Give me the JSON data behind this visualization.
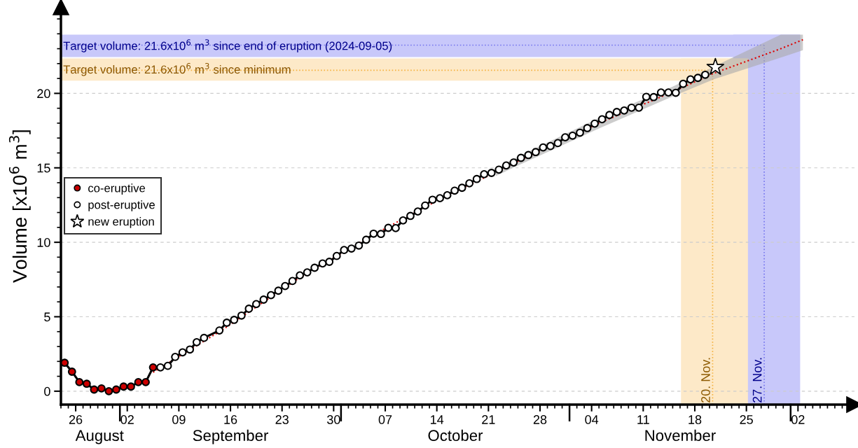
{
  "chart_data": {
    "type": "line",
    "ylabel": "Volume [x10$^{6}$ m$^{3}$]",
    "xlim": [
      "2024-08-24T00:00",
      "2024-12-09T16:00"
    ],
    "ylim": [
      -0.9,
      25.8
    ],
    "yticks": [
      0,
      5,
      10,
      15,
      20
    ],
    "xticks": [
      {
        "value": "2024-08-26",
        "label": "26"
      },
      {
        "value": "2024-09-02",
        "label": "02"
      },
      {
        "value": "2024-09-09",
        "label": "09"
      },
      {
        "value": "2024-09-16",
        "label": "16"
      },
      {
        "value": "2024-09-23",
        "label": "23"
      },
      {
        "value": "2024-09-30",
        "label": "30"
      },
      {
        "value": "2024-10-07",
        "label": "07"
      },
      {
        "value": "2024-10-14",
        "label": "14"
      },
      {
        "value": "2024-10-21",
        "label": "21"
      },
      {
        "value": "2024-10-28",
        "label": "28"
      },
      {
        "value": "2024-11-04",
        "label": "04"
      },
      {
        "value": "2024-11-11",
        "label": "11"
      },
      {
        "value": "2024-11-18",
        "label": "18"
      },
      {
        "value": "2024-11-25",
        "label": "25"
      },
      {
        "value": "2024-12-02",
        "label": "02"
      }
    ],
    "x2lim": [
      "2024-08-24T00:00",
      "2024-12-09T16:00"
    ],
    "x2ticks": [
      {
        "value": "2024-08-29T06:00",
        "label": "August"
      },
      {
        "value": "2024-09-16",
        "label": "September"
      },
      {
        "value": "2024-10-16T12:00",
        "label": "October"
      },
      {
        "value": "2024-11-16",
        "label": "November"
      }
    ],
    "grid": "y",
    "legend": "center left",
    "bands": [
      {
        "axis": "y",
        "from": 22.44,
        "to": 23.94,
        "label": "Target volume: 21.6x10$^{6}$ m$^{3}$ since end of eruption (2024-09-05)",
        "color": "#c8c8fa"
      },
      {
        "axis": "y",
        "from": 20.85,
        "to": 22.35,
        "label": "Target volume: 21.6x10$^{6}$ m$^{3}$ since minimum",
        "color": "#fde9c8"
      },
      {
        "axis": "x",
        "from": "2024-11-23T05:00",
        "to": "2024-12-02T07:00",
        "color": "#c8c8fa"
      },
      {
        "axis": "x",
        "from": "2024-11-16T03:00",
        "to": "2024-11-25T05:00",
        "color": "#fde9c8"
      }
    ],
    "ref_lines": [
      {
        "axis": "y",
        "value": 23.24,
        "color": "#7777ee",
        "line_style": "dotted"
      },
      {
        "axis": "y",
        "value": 21.55,
        "color": "#f5b342",
        "line_style": "dotted"
      },
      {
        "axis": "x",
        "value": "2024-11-20T10:00",
        "label": "20. Nov.",
        "color": "#f5b342",
        "line_style": "dotted"
      },
      {
        "axis": "x",
        "value": "2024-11-27T10:00",
        "label": "27. Nov.",
        "color": "#7777ee",
        "line_style": "dotted"
      }
    ],
    "series": [
      {
        "color": "#dd0000",
        "line_style": "dotted",
        "marker": "none",
        "x": [
          "2024-09-05T12:00",
          "2024-09-15",
          "2024-09-25",
          "2024-10-05",
          "2024-10-15",
          "2024-10-22",
          "2024-10-25",
          "2024-11-05",
          "2024-11-15",
          "2024-11-20T14:00",
          "2024-11-29T16:00",
          "2024-12-02T16:00"
        ],
        "values": [
          1.27,
          4.15,
          7.5,
          10.4,
          13.05,
          14.7,
          15.45,
          18.0,
          20.1,
          21.35,
          23.0,
          23.6
        ],
        "lower": [
          null,
          null,
          null,
          null,
          null,
          14.45,
          15.15,
          17.65,
          19.8,
          20.95,
          22.4,
          22.9
        ],
        "upper": [
          null,
          null,
          null,
          null,
          null,
          14.95,
          15.75,
          18.35,
          20.45,
          21.8,
          23.94,
          23.94
        ]
      },
      {
        "name": "co-eruptive",
        "color": "#cc0000",
        "line_style": "solid",
        "marker": "circle",
        "x": [
          "2024-08-24T12:00",
          "2024-08-25T12:00",
          "2024-08-26T12:00",
          "2024-08-27T12:00",
          "2024-08-28T12:00",
          "2024-08-29T12:00",
          "2024-08-30T12:00",
          "2024-08-31T12:00",
          "2024-09-01T12:00",
          "2024-09-02T12:00",
          "2024-09-03T12:00",
          "2024-09-04T12:00",
          "2024-09-05T12:00"
        ],
        "values": [
          1.91,
          1.31,
          0.61,
          0.5,
          0.11,
          0.19,
          0.0,
          0.11,
          0.31,
          0.31,
          0.61,
          0.61,
          1.6
        ]
      },
      {
        "name": "post-eruptive",
        "color": "#ffffff",
        "line_style": "solid",
        "marker": "circle",
        "x": [
          "2024-09-06T12:00",
          "2024-09-07T12:00",
          "2024-09-08T12:00",
          "2024-09-09T12:00",
          "2024-09-10T12:00",
          "2024-09-11T10:00",
          "2024-09-12T10:00",
          "2024-09-14T12:00",
          "2024-09-15T12:00",
          "2024-09-16T12:00",
          "2024-09-17T12:00",
          "2024-09-18T12:00",
          "2024-09-19T12:00",
          "2024-09-20T12:00",
          "2024-09-21T12:00",
          "2024-09-22T12:00",
          "2024-09-23T10:00",
          "2024-09-24T10:00",
          "2024-09-25T10:00",
          "2024-09-26T10:00",
          "2024-09-27T10:00",
          "2024-09-28T12:00",
          "2024-09-29T10:00",
          "2024-09-30T10:00",
          "2024-10-01T10:00",
          "2024-10-02T10:00",
          "2024-10-03T10:00",
          "2024-10-04T10:00",
          "2024-10-05T10:00",
          "2024-10-06T10:00",
          "2024-10-07T10:00",
          "2024-10-08T10:00",
          "2024-10-09T10:00",
          "2024-10-10T10:00",
          "2024-10-11T10:00",
          "2024-10-12T10:00",
          "2024-10-13T10:00",
          "2024-10-14T10:00",
          "2024-10-15T10:00",
          "2024-10-16T10:00",
          "2024-10-17T10:00",
          "2024-10-18T10:00",
          "2024-10-19T10:00",
          "2024-10-20T10:00",
          "2024-10-21T10:00",
          "2024-10-22T10:00",
          "2024-10-23T10:00",
          "2024-10-24T10:00",
          "2024-10-25T10:00",
          "2024-10-26T10:00",
          "2024-10-27T10:00",
          "2024-10-28T10:00",
          "2024-10-29T10:00",
          "2024-10-30T10:00",
          "2024-10-31T10:00",
          "2024-11-01T10:00",
          "2024-11-02T10:00",
          "2024-11-03T10:00",
          "2024-11-04T10:00",
          "2024-11-05T10:00",
          "2024-11-06T10:00",
          "2024-11-07T10:00",
          "2024-11-08T10:00",
          "2024-11-09T10:00",
          "2024-11-10T10:00",
          "2024-11-11T10:00",
          "2024-11-12T10:00",
          "2024-11-13T10:00",
          "2024-11-14T10:00",
          "2024-11-15T10:00",
          "2024-11-16T10:00",
          "2024-11-17T10:00",
          "2024-11-18T10:00",
          "2024-11-19T10:00"
        ],
        "values": [
          1.6,
          1.7,
          2.3,
          2.61,
          2.8,
          3.29,
          3.58,
          4.08,
          4.6,
          4.79,
          5.08,
          5.54,
          5.85,
          6.15,
          6.45,
          6.75,
          7.06,
          7.4,
          7.78,
          7.98,
          8.29,
          8.58,
          8.69,
          9.08,
          9.48,
          9.58,
          9.78,
          10.17,
          10.58,
          10.56,
          10.97,
          10.95,
          11.47,
          11.77,
          12.07,
          12.47,
          12.86,
          12.96,
          13.16,
          13.47,
          13.66,
          13.96,
          14.25,
          14.57,
          14.66,
          14.88,
          15.16,
          15.36,
          15.67,
          15.86,
          16.06,
          16.37,
          16.46,
          16.66,
          17.05,
          17.16,
          17.36,
          17.67,
          17.97,
          18.26,
          18.55,
          18.75,
          18.85,
          19.04,
          19.04,
          19.77,
          19.75,
          20.06,
          20.06,
          20.04,
          20.64,
          20.94,
          21.04,
          21.25
        ]
      },
      {
        "type": "scatter",
        "name": "new eruption",
        "color": "#ffffff",
        "marker": "star",
        "x": [
          "2024-11-20T19:00"
        ],
        "values": [
          21.76
        ]
      }
    ]
  }
}
